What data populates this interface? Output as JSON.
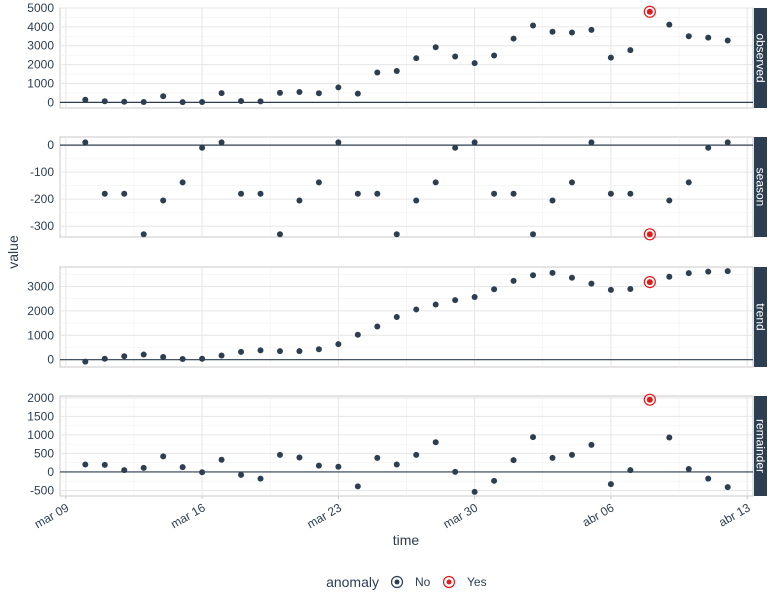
{
  "chart_data": {
    "type": "scatter",
    "xlabel": "time",
    "ylabel": "value",
    "x_tick_labels": [
      "mar 09",
      "mar 16",
      "mar 23",
      "mar 30",
      "abr 06",
      "abr 13"
    ],
    "x_tick_days": [
      0,
      7,
      14,
      21,
      28,
      35
    ],
    "x_range_days": [
      -0.3,
      35.3
    ],
    "x_start_day": 1,
    "colors": {
      "normal": "#2c3e50",
      "anomaly": "#e31a1c",
      "strip_bg": "#2c3e50",
      "grid": "#e6e6e6",
      "zero_line": "#2c3e50"
    },
    "legend": {
      "title": "anomaly",
      "items": [
        "No",
        "Yes"
      ],
      "placement": "bottom"
    },
    "anomaly_index": [
      29
    ],
    "panels": [
      {
        "name": "observed",
        "ylim": [
          -300,
          5000
        ],
        "yticks": [
          0,
          1000,
          2000,
          3000,
          4000,
          5000
        ],
        "values": [
          140,
          60,
          30,
          20,
          320,
          10,
          20,
          490,
          70,
          50,
          500,
          550,
          480,
          790,
          460,
          1580,
          1660,
          2340,
          2920,
          2430,
          2080,
          2480,
          3380,
          4070,
          3740,
          3700,
          3840,
          2370,
          2770,
          4800,
          4120,
          3500,
          3430,
          3280
        ]
      },
      {
        "name": "season",
        "ylim": [
          -340,
          30
        ],
        "yticks": [
          0,
          -100,
          -200,
          -300
        ],
        "values": [
          10,
          -180,
          -180,
          -330,
          -205,
          -138,
          -10,
          10,
          -180,
          -180,
          -330,
          -205,
          -138,
          10,
          -180,
          -180,
          -330,
          -205,
          -138,
          -10,
          10,
          -180,
          -180,
          -330,
          -205,
          -138,
          10,
          -180,
          -180,
          -330,
          -205,
          -138,
          -10,
          10
        ]
      },
      {
        "name": "trend",
        "ylim": [
          -300,
          3800
        ],
        "yticks": [
          0,
          1000,
          2000,
          3000
        ],
        "values": [
          -80,
          40,
          140,
          210,
          110,
          30,
          40,
          170,
          320,
          380,
          350,
          350,
          430,
          640,
          1020,
          1360,
          1750,
          2060,
          2260,
          2440,
          2570,
          2890,
          3230,
          3460,
          3560,
          3360,
          3120,
          2860,
          2900,
          3180,
          3400,
          3550,
          3610,
          3630
        ]
      },
      {
        "name": "remainder",
        "ylim": [
          -650,
          2050
        ],
        "yticks": [
          2000,
          1500,
          1000,
          500,
          0,
          -500
        ],
        "values": [
          200,
          190,
          50,
          110,
          420,
          130,
          -10,
          330,
          -80,
          -180,
          460,
          390,
          170,
          140,
          -390,
          380,
          200,
          460,
          800,
          0,
          -540,
          -240,
          320,
          940,
          380,
          460,
          730,
          -330,
          50,
          1950,
          930,
          80,
          -180,
          -410
        ]
      }
    ]
  }
}
